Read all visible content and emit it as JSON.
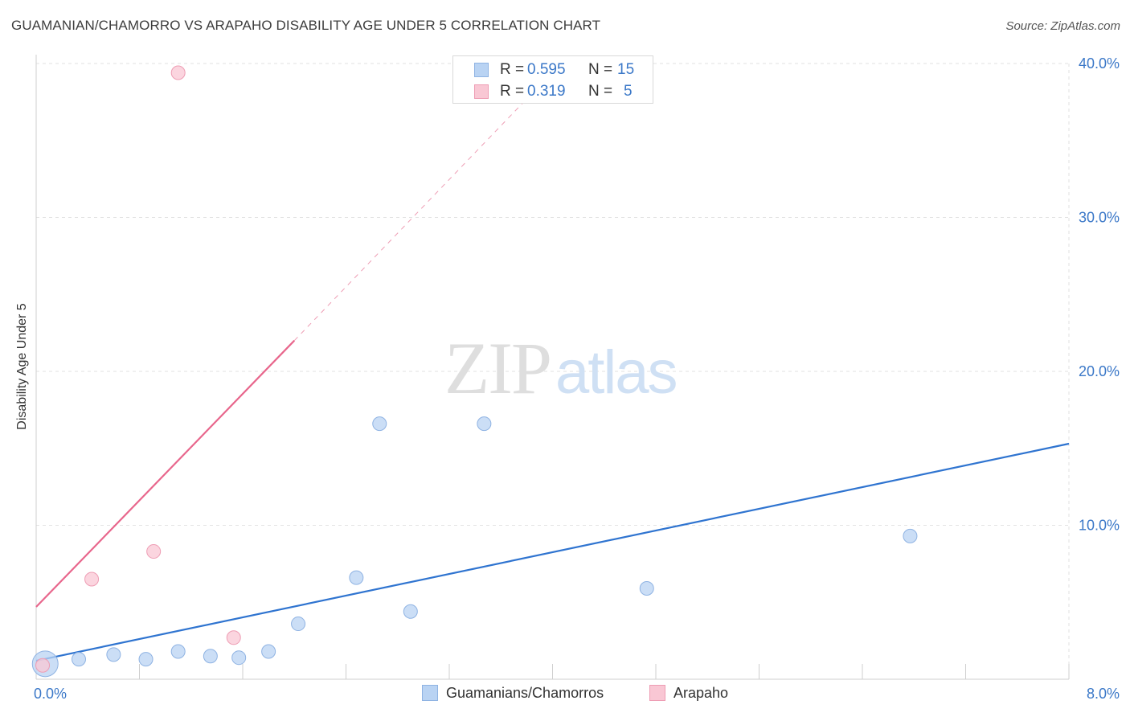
{
  "header": {
    "title": "GUAMANIAN/CHAMORRO VS ARAPAHO DISABILITY AGE UNDER 5 CORRELATION CHART",
    "source": "Source: ZipAtlas.com"
  },
  "watermark": {
    "zip": "ZIP",
    "atlas": "atlas"
  },
  "legend_top": {
    "rows": [
      {
        "r_label": "R =",
        "r_value": "0.595",
        "n_label": "N =",
        "n_value": "15"
      },
      {
        "r_label": "R =",
        "r_value": "0.319",
        "n_label": "N =",
        "n_value": "5"
      }
    ]
  },
  "legend_bottom": {
    "items": [
      {
        "label": "Guamanians/Chamorros"
      },
      {
        "label": "Arapaho"
      }
    ]
  },
  "colors": {
    "blue_fill": "#b9d3f3",
    "blue_stroke": "#8fb3e3",
    "blue_line": "#2f74d0",
    "pink_fill": "#f9c7d4",
    "pink_stroke": "#ee9db4",
    "pink_line": "#e8668c",
    "axis_text": "#3b78c8",
    "grid": "#e2e2e2"
  },
  "chart_data": {
    "type": "scatter",
    "title": "GUAMANIAN/CHAMORRO VS ARAPAHO DISABILITY AGE UNDER 5 CORRELATION CHART",
    "xlabel": "",
    "ylabel": "Disability Age Under 5",
    "xlim": [
      0.0,
      8.0
    ],
    "ylim": [
      0.0,
      40.0
    ],
    "x_tick_labels": [
      "0.0%",
      "8.0%"
    ],
    "y_ticks": [
      10,
      20,
      30,
      40
    ],
    "y_tick_labels": [
      "10.0%",
      "20.0%",
      "30.0%",
      "40.0%"
    ],
    "grid": true,
    "legend_position": "top-center",
    "series": [
      {
        "name": "Guamanians/Chamorros",
        "color": "#b9d3f3",
        "points": [
          {
            "x": 0.07,
            "y": 1.0,
            "size": "large"
          },
          {
            "x": 0.33,
            "y": 1.3
          },
          {
            "x": 0.6,
            "y": 1.6
          },
          {
            "x": 0.85,
            "y": 1.3
          },
          {
            "x": 1.1,
            "y": 1.8
          },
          {
            "x": 1.35,
            "y": 1.5
          },
          {
            "x": 1.57,
            "y": 1.4
          },
          {
            "x": 1.8,
            "y": 1.8
          },
          {
            "x": 2.03,
            "y": 3.6
          },
          {
            "x": 2.48,
            "y": 6.6
          },
          {
            "x": 2.66,
            "y": 16.6
          },
          {
            "x": 2.9,
            "y": 4.4
          },
          {
            "x": 3.47,
            "y": 16.6
          },
          {
            "x": 4.73,
            "y": 5.9
          },
          {
            "x": 6.77,
            "y": 9.3
          }
        ],
        "trendline": {
          "x": [
            0.0,
            8.0
          ],
          "y": [
            1.2,
            15.3
          ],
          "style": "solid"
        }
      },
      {
        "name": "Arapaho",
        "color": "#f9c7d4",
        "points": [
          {
            "x": 0.05,
            "y": 0.9
          },
          {
            "x": 0.43,
            "y": 6.5
          },
          {
            "x": 0.91,
            "y": 8.3
          },
          {
            "x": 1.1,
            "y": 39.4
          },
          {
            "x": 1.53,
            "y": 2.7
          }
        ],
        "trendline": {
          "x": [
            0.0,
            2.0
          ],
          "y": [
            4.7,
            22.0
          ],
          "style": "solid",
          "extension": {
            "x": [
              2.0,
              3.8
            ],
            "y": [
              22.0,
              37.7
            ],
            "style": "dashed"
          }
        }
      }
    ]
  }
}
